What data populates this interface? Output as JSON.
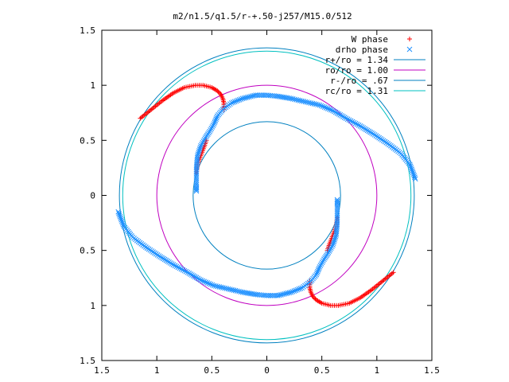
{
  "chart_data": {
    "type": "scatter",
    "title": "m2/n1.5/q1.5/r-+.50-j257/M15.0/512",
    "xlabel": "",
    "ylabel": "",
    "xlim": [
      -1.5,
      1.5
    ],
    "ylim": [
      -1.5,
      1.5
    ],
    "x_ticks": [
      "1.5",
      "1",
      "0.5",
      "0",
      "0.5",
      "1",
      "1.5"
    ],
    "y_ticks": [
      "1.5",
      "1",
      "0.5",
      "0",
      "0.5",
      "1",
      "1.5"
    ],
    "grid": false,
    "legend_position": "top-right",
    "series": [
      {
        "name": "W phase",
        "marker": "plus",
        "color": "#ff0000",
        "branches": [
          [
            [
              -1.15,
              0.7
            ],
            [
              -1.05,
              0.78
            ],
            [
              -0.95,
              0.86
            ],
            [
              -0.85,
              0.93
            ],
            [
              -0.75,
              0.98
            ],
            [
              -0.65,
              1.0
            ],
            [
              -0.58,
              1.0
            ],
            [
              -0.5,
              0.98
            ],
            [
              -0.45,
              0.95
            ],
            [
              -0.42,
              0.92
            ],
            [
              -0.4,
              0.88
            ],
            [
              -0.39,
              0.84
            ],
            [
              -0.39,
              0.78
            ]
          ],
          [
            [
              1.15,
              -0.7
            ],
            [
              1.05,
              -0.78
            ],
            [
              0.95,
              -0.86
            ],
            [
              0.85,
              -0.93
            ],
            [
              0.75,
              -0.98
            ],
            [
              0.65,
              -1.0
            ],
            [
              0.58,
              -1.0
            ],
            [
              0.5,
              -0.98
            ],
            [
              0.45,
              -0.95
            ],
            [
              0.42,
              -0.92
            ],
            [
              0.4,
              -0.88
            ],
            [
              0.39,
              -0.84
            ],
            [
              0.39,
              -0.78
            ]
          ],
          [
            [
              -0.64,
              0.2
            ],
            [
              -0.63,
              0.28
            ],
            [
              -0.6,
              0.36
            ],
            [
              -0.57,
              0.44
            ],
            [
              -0.55,
              0.5
            ]
          ],
          [
            [
              0.64,
              -0.2
            ],
            [
              0.63,
              -0.28
            ],
            [
              0.6,
              -0.36
            ],
            [
              0.57,
              -0.44
            ],
            [
              0.55,
              -0.5
            ]
          ]
        ]
      },
      {
        "name": "drho phase",
        "marker": "cross",
        "color": "#1e90ff",
        "branches": [
          [
            [
              -1.35,
              -0.15
            ],
            [
              -1.3,
              -0.28
            ],
            [
              -1.22,
              -0.38
            ],
            [
              -1.1,
              -0.47
            ],
            [
              -0.98,
              -0.55
            ],
            [
              -0.85,
              -0.63
            ],
            [
              -0.72,
              -0.7
            ],
            [
              -0.6,
              -0.77
            ],
            [
              -0.48,
              -0.82
            ],
            [
              -0.35,
              -0.85
            ],
            [
              -0.22,
              -0.88
            ],
            [
              -0.1,
              -0.9
            ],
            [
              0.0,
              -0.91
            ],
            [
              0.1,
              -0.91
            ],
            [
              0.22,
              -0.88
            ],
            [
              0.32,
              -0.84
            ],
            [
              0.4,
              -0.78
            ],
            [
              0.45,
              -0.72
            ],
            [
              0.48,
              -0.65
            ],
            [
              0.52,
              -0.58
            ],
            [
              0.56,
              -0.52
            ],
            [
              0.6,
              -0.45
            ],
            [
              0.63,
              -0.36
            ],
            [
              0.64,
              -0.25
            ],
            [
              0.64,
              -0.15
            ],
            [
              0.64,
              -0.08
            ],
            [
              0.64,
              -0.04
            ]
          ],
          [
            [
              1.35,
              0.15
            ],
            [
              1.3,
              0.28
            ],
            [
              1.22,
              0.38
            ],
            [
              1.1,
              0.47
            ],
            [
              0.98,
              0.55
            ],
            [
              0.85,
              0.63
            ],
            [
              0.72,
              0.7
            ],
            [
              0.6,
              0.77
            ],
            [
              0.48,
              0.82
            ],
            [
              0.35,
              0.85
            ],
            [
              0.22,
              0.88
            ],
            [
              0.1,
              0.9
            ],
            [
              0.0,
              0.91
            ],
            [
              -0.1,
              0.91
            ],
            [
              -0.22,
              0.88
            ],
            [
              -0.32,
              0.84
            ],
            [
              -0.4,
              0.78
            ],
            [
              -0.45,
              0.72
            ],
            [
              -0.48,
              0.65
            ],
            [
              -0.52,
              0.58
            ],
            [
              -0.56,
              0.52
            ],
            [
              -0.6,
              0.45
            ],
            [
              -0.63,
              0.36
            ],
            [
              -0.64,
              0.25
            ],
            [
              -0.64,
              0.15
            ],
            [
              -0.64,
              0.08
            ],
            [
              -0.64,
              0.04
            ]
          ]
        ]
      }
    ],
    "circles": [
      {
        "name": "r+/ro = 1.34",
        "radius": 1.34,
        "color": "#0080c0"
      },
      {
        "name": "ro/ro = 1.00",
        "radius": 1.0,
        "color": "#c000c0"
      },
      {
        "name": "r-/ro = .67",
        "radius": 0.67,
        "color": "#0080c0"
      },
      {
        "name": "rc/ro = 1.31",
        "radius": 1.31,
        "color": "#00c0c0"
      }
    ]
  }
}
